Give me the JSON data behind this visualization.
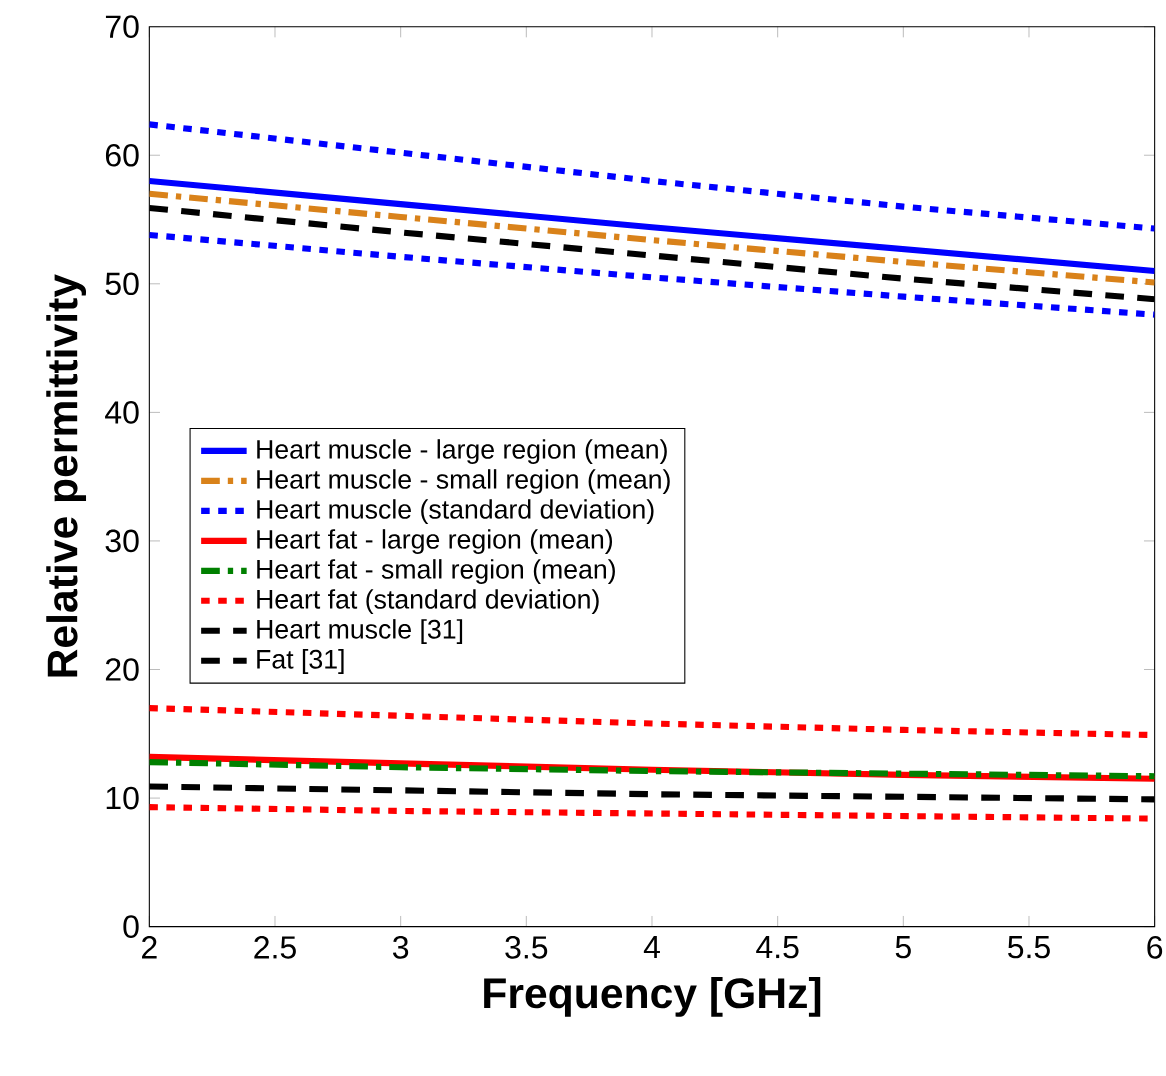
{
  "chart_data": {
    "type": "line",
    "xlabel": "Frequency [GHz]",
    "ylabel": "Relative permittivity",
    "x": [
      2,
      3,
      4,
      5,
      6
    ],
    "xlim": [
      2,
      6
    ],
    "xticks": [
      2,
      2.5,
      3,
      3.5,
      4,
      4.5,
      5,
      5.5,
      6
    ],
    "ylim": [
      0,
      70
    ],
    "yticks": [
      0,
      10,
      20,
      30,
      40,
      50,
      60,
      70
    ],
    "grid": false,
    "legend": "left",
    "series": [
      {
        "name": "Heart muscle - large region (mean)",
        "color": "#0000ff",
        "line_style": "solid",
        "values": [
          58.0,
          56.2,
          54.4,
          52.7,
          51.0
        ]
      },
      {
        "name": "Heart muscle - small region (mean)",
        "color": "#d9821a",
        "line_style": "dashdot",
        "values": [
          57.0,
          55.2,
          53.4,
          51.7,
          50.1
        ]
      },
      {
        "name": "Heart muscle (standard deviation)",
        "color": "#0000ff",
        "line_style": "dotted",
        "values": [
          62.4,
          60.2,
          58.0,
          56.0,
          54.3
        ]
      },
      {
        "name": "Heart fat - large region (mean)",
        "color": "#ff0000",
        "line_style": "solid",
        "values": [
          13.2,
          12.7,
          12.2,
          11.8,
          11.5
        ]
      },
      {
        "name": "Heart fat - small region (mean)",
        "color": "#008000",
        "line_style": "dashdot",
        "values": [
          12.8,
          12.4,
          12.1,
          11.9,
          11.7
        ]
      },
      {
        "name": "Heart fat (standard deviation)",
        "color": "#ff0000",
        "line_style": "dotted",
        "values": [
          17.0,
          16.4,
          15.8,
          15.3,
          14.9
        ]
      },
      {
        "name": "Heart muscle [31]",
        "color": "#000000",
        "line_style": "dashed",
        "values": [
          55.9,
          54.0,
          52.2,
          50.4,
          48.8
        ]
      },
      {
        "name": "Fat [31]",
        "color": "#000000",
        "line_style": "dashed",
        "values": [
          10.9,
          10.6,
          10.3,
          10.1,
          9.9
        ]
      },
      {
        "color": "#0000ff",
        "line_style": "dotted",
        "values": [
          53.8,
          52.1,
          50.5,
          49.0,
          47.6
        ]
      },
      {
        "color": "#ff0000",
        "line_style": "dotted",
        "values": [
          9.3,
          9.0,
          8.8,
          8.6,
          8.4
        ]
      }
    ]
  }
}
